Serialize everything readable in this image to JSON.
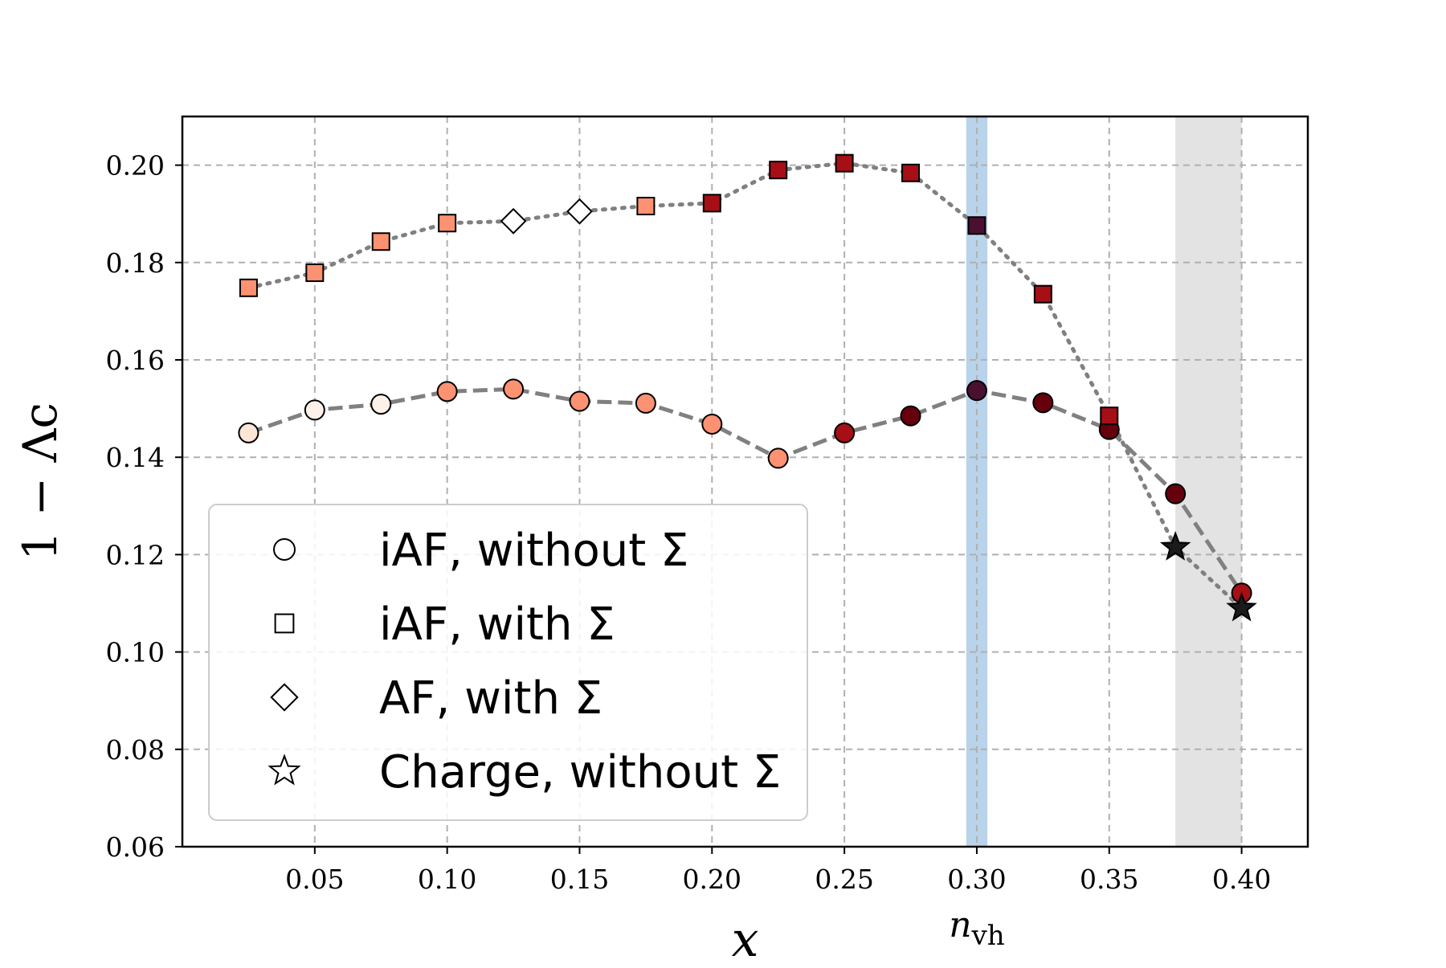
{
  "chart_data": {
    "type": "scatter",
    "xlabel": "x",
    "ylabel": "1 − Λc",
    "xlim": [
      0.0,
      0.425
    ],
    "ylim": [
      0.06,
      0.21
    ],
    "x_ticks": [
      "0.05",
      "0.10",
      "0.15",
      "0.20",
      "0.25",
      "0.30",
      "0.35",
      "0.40"
    ],
    "x_tick_values": [
      0.05,
      0.1,
      0.15,
      0.2,
      0.25,
      0.3,
      0.35,
      0.4
    ],
    "y_ticks": [
      "0.06",
      "0.08",
      "0.10",
      "0.12",
      "0.14",
      "0.16",
      "0.18",
      "0.20"
    ],
    "y_tick_values": [
      0.06,
      0.08,
      0.1,
      0.12,
      0.14,
      0.16,
      0.18,
      0.2
    ],
    "grid": true,
    "legend_position": "lower-left",
    "annotations": [
      {
        "text": "n_vh",
        "x": 0.3
      }
    ],
    "shaded_regions": [
      {
        "x0": 0.296,
        "x1": 0.304,
        "color": "#b9d3ea"
      },
      {
        "x0": 0.375,
        "x1": 0.4,
        "color": "#e3e3e3"
      }
    ],
    "colors": {
      "line": "#808080",
      "blue_band": "#b9d3ea",
      "gray_band": "#e3e3e3"
    },
    "colormap": [
      "#fde5d8",
      "#fcbba1",
      "#fc9272",
      "#fb6a4a",
      "#ef3b2c",
      "#cb181d",
      "#a50f15",
      "#67000d",
      "#4a1030"
    ],
    "series": [
      {
        "name": "iAF, without Σ",
        "marker": "circle",
        "linestyle": "dashed",
        "x": [
          0.025,
          0.05,
          0.075,
          0.1,
          0.125,
          0.15,
          0.175,
          0.2,
          0.225,
          0.25,
          0.275,
          0.3,
          0.325,
          0.35,
          0.375,
          0.4
        ],
        "y": [
          0.145,
          0.1497,
          0.1509,
          0.1535,
          0.154,
          0.1515,
          0.1511,
          0.1468,
          0.1398,
          0.145,
          0.1485,
          0.1537,
          0.1512,
          0.1457,
          0.1325,
          0.1121
        ],
        "colors": [
          "#fde5d8",
          "#fef1ea",
          "#fef1ea",
          "#fc9272",
          "#fc9272",
          "#fc9272",
          "#fc9272",
          "#fc9272",
          "#fc9272",
          "#a50f15",
          "#67000d",
          "#4a1030",
          "#67000d",
          "#67000d",
          "#67000d",
          "#a50f15"
        ]
      },
      {
        "name": "iAF, with Σ",
        "marker": "square",
        "linestyle": "dotted",
        "x": [
          0.025,
          0.05,
          0.075,
          0.1,
          0.175,
          0.2,
          0.225,
          0.25,
          0.275,
          0.3,
          0.325,
          0.35
        ],
        "y": [
          0.1748,
          0.1779,
          0.1843,
          0.1881,
          0.1916,
          0.1922,
          0.199,
          0.2004,
          0.1984,
          0.1876,
          0.1735,
          0.1485
        ],
        "colors": [
          "#fc9272",
          "#fc9272",
          "#fc9272",
          "#fc9272",
          "#fc9272",
          "#a50f15",
          "#a50f15",
          "#a50f15",
          "#a50f15",
          "#4a1030",
          "#a50f15",
          "#a50f15"
        ]
      },
      {
        "name": "AF, with Σ",
        "marker": "diamond",
        "linestyle": "dotted",
        "x": [
          0.125,
          0.15
        ],
        "y": [
          0.1885,
          0.1905
        ],
        "colors": [
          "#ffffff",
          "#ffffff"
        ]
      },
      {
        "name": "Charge, without Σ",
        "marker": "star",
        "linestyle": "dotted",
        "x": [
          0.375,
          0.4
        ],
        "y": [
          0.1215,
          0.109
        ],
        "colors": [
          "#1a1a1a",
          "#1a1a1a"
        ]
      }
    ],
    "dotted_path_x": [
      0.025,
      0.05,
      0.075,
      0.1,
      0.125,
      0.15,
      0.175,
      0.2,
      0.225,
      0.25,
      0.275,
      0.3,
      0.325,
      0.35,
      0.375,
      0.4
    ],
    "dotted_path_y": [
      0.1748,
      0.1779,
      0.1843,
      0.1881,
      0.1885,
      0.1905,
      0.1916,
      0.1922,
      0.199,
      0.2004,
      0.1984,
      0.1876,
      0.1735,
      0.1485,
      0.1215,
      0.109
    ]
  }
}
